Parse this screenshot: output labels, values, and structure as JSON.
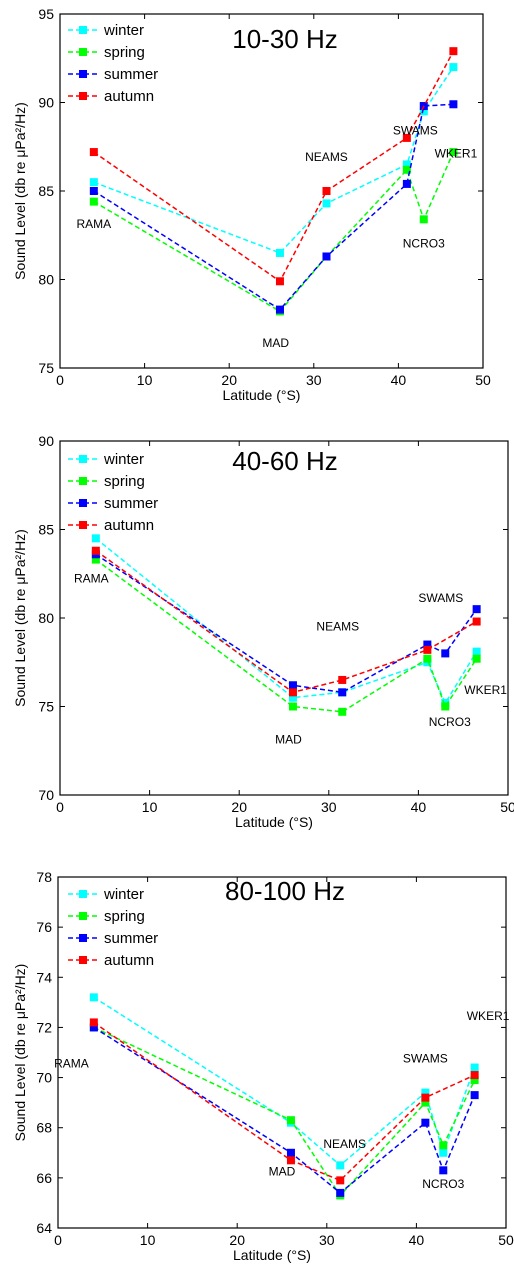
{
  "figure": {
    "background": "#ffffff",
    "series_colors": {
      "winter": "#00ffff",
      "spring": "#00ff00",
      "summer": "#0000ff",
      "autumn": "#ff0000"
    }
  },
  "chart_data": [
    {
      "type": "line",
      "title": "10-30 Hz",
      "xlabel": "Latitude (°S)",
      "ylabel": "Sound Level (db re μPa²/Hz)",
      "xlim": [
        0,
        50
      ],
      "ylim": [
        75,
        95
      ],
      "xticks": [
        0,
        10,
        20,
        30,
        40,
        50
      ],
      "yticks": [
        75,
        80,
        85,
        90,
        95
      ],
      "legend_position": "top-left",
      "series": [
        {
          "name": "winter",
          "color": "#00ffff",
          "points": [
            [
              4,
              85.5
            ],
            [
              26,
              81.5
            ],
            [
              31.5,
              84.3
            ],
            [
              41,
              86.5
            ],
            [
              43,
              89.5
            ],
            [
              46.5,
              92.0
            ]
          ]
        },
        {
          "name": "spring",
          "color": "#00ff00",
          "points": [
            [
              4,
              84.4
            ],
            [
              26,
              78.2
            ],
            [
              31.5,
              81.3
            ],
            [
              41,
              86.2
            ],
            [
              43,
              83.4
            ],
            [
              46.5,
              87.2
            ]
          ]
        },
        {
          "name": "summer",
          "color": "#0000ff",
          "points": [
            [
              4,
              85.0
            ],
            [
              26,
              78.3
            ],
            [
              31.5,
              81.3
            ],
            [
              41,
              85.4
            ],
            [
              43,
              89.8
            ],
            [
              46.5,
              89.9
            ]
          ]
        },
        {
          "name": "autumn",
          "color": "#ff0000",
          "points": [
            [
              4,
              87.2
            ],
            [
              26,
              79.9
            ],
            [
              31.5,
              85.0
            ],
            [
              41,
              88.0
            ],
            [
              46.5,
              92.9
            ]
          ]
        }
      ],
      "annotations": [
        {
          "text": "RAMA",
          "x": 4,
          "y": 82.9
        },
        {
          "text": "MAD",
          "x": 25.5,
          "y": 76.2
        },
        {
          "text": "NEAMS",
          "x": 31.5,
          "y": 86.7
        },
        {
          "text": "SWAMS",
          "x": 42,
          "y": 88.2
        },
        {
          "text": "NCRO3",
          "x": 43,
          "y": 81.8
        },
        {
          "text": "WKER1",
          "x": 46.8,
          "y": 86.9
        }
      ]
    },
    {
      "type": "line",
      "title": "40-60 Hz",
      "xlabel": "Latitude (°S)",
      "ylabel": "Sound Level (db re μPa²/Hz)",
      "xlim": [
        0,
        50
      ],
      "ylim": [
        70,
        90
      ],
      "xticks": [
        0,
        10,
        20,
        30,
        40,
        50
      ],
      "yticks": [
        70,
        75,
        80,
        85,
        90
      ],
      "legend_position": "top-left",
      "series": [
        {
          "name": "winter",
          "color": "#00ffff",
          "points": [
            [
              4,
              84.5
            ],
            [
              26,
              75.5
            ],
            [
              31.5,
              75.8
            ],
            [
              41,
              77.5
            ],
            [
              43,
              75.2
            ],
            [
              46.5,
              78.1
            ]
          ]
        },
        {
          "name": "spring",
          "color": "#00ff00",
          "points": [
            [
              4,
              83.3
            ],
            [
              26,
              75.0
            ],
            [
              31.5,
              74.7
            ],
            [
              41,
              77.7
            ],
            [
              43,
              75.0
            ],
            [
              46.5,
              77.7
            ]
          ]
        },
        {
          "name": "summer",
          "color": "#0000ff",
          "points": [
            [
              4,
              83.6
            ],
            [
              26,
              76.2
            ],
            [
              31.5,
              75.8
            ],
            [
              41,
              78.5
            ],
            [
              43,
              78.0
            ],
            [
              46.5,
              80.5
            ]
          ]
        },
        {
          "name": "autumn",
          "color": "#ff0000",
          "points": [
            [
              4,
              83.8
            ],
            [
              26,
              75.8
            ],
            [
              31.5,
              76.5
            ],
            [
              41,
              78.2
            ],
            [
              46.5,
              79.8
            ]
          ]
        }
      ],
      "annotations": [
        {
          "text": "RAMA",
          "x": 3.5,
          "y": 82.0
        },
        {
          "text": "MAD",
          "x": 25.5,
          "y": 72.9
        },
        {
          "text": "NEAMS",
          "x": 31,
          "y": 79.3
        },
        {
          "text": "SWAMS",
          "x": 42.5,
          "y": 80.9
        },
        {
          "text": "NCRO3",
          "x": 43.5,
          "y": 73.9
        },
        {
          "text": "WKER1",
          "x": 47.5,
          "y": 75.7
        }
      ]
    },
    {
      "type": "line",
      "title": "80-100 Hz",
      "xlabel": "Latitude (°S)",
      "ylabel": "Sound Level (db re μPa²/Hz)",
      "xlim": [
        0,
        50
      ],
      "ylim": [
        64,
        78
      ],
      "xticks": [
        0,
        10,
        20,
        30,
        40,
        50
      ],
      "yticks": [
        64,
        66,
        68,
        70,
        72,
        74,
        76,
        78
      ],
      "legend_position": "top-left",
      "series": [
        {
          "name": "winter",
          "color": "#00ffff",
          "points": [
            [
              4,
              73.2
            ],
            [
              26,
              68.2
            ],
            [
              31.5,
              66.5
            ],
            [
              41,
              69.4
            ],
            [
              43,
              67.0
            ],
            [
              46.5,
              70.4
            ]
          ]
        },
        {
          "name": "spring",
          "color": "#00ff00",
          "points": [
            [
              4,
              72.0
            ],
            [
              26,
              68.3
            ],
            [
              31.5,
              65.3
            ],
            [
              41,
              69.0
            ],
            [
              43,
              67.3
            ],
            [
              46.5,
              69.9
            ]
          ]
        },
        {
          "name": "summer",
          "color": "#0000ff",
          "points": [
            [
              4,
              72.0
            ],
            [
              26,
              67.0
            ],
            [
              31.5,
              65.4
            ],
            [
              41,
              68.2
            ],
            [
              43,
              66.3
            ],
            [
              46.5,
              69.3
            ]
          ]
        },
        {
          "name": "autumn",
          "color": "#ff0000",
          "points": [
            [
              4,
              72.2
            ],
            [
              26,
              66.7
            ],
            [
              31.5,
              65.9
            ],
            [
              41,
              69.2
            ],
            [
              46.5,
              70.1
            ]
          ]
        }
      ],
      "annotations": [
        {
          "text": "RAMA",
          "x": 1.5,
          "y": 70.4
        },
        {
          "text": "MAD",
          "x": 25,
          "y": 66.1
        },
        {
          "text": "NEAMS",
          "x": 32,
          "y": 67.2
        },
        {
          "text": "SWAMS",
          "x": 41,
          "y": 70.6
        },
        {
          "text": "NCRO3",
          "x": 43,
          "y": 65.6
        },
        {
          "text": "WKER1",
          "x": 48,
          "y": 72.3
        }
      ]
    }
  ]
}
